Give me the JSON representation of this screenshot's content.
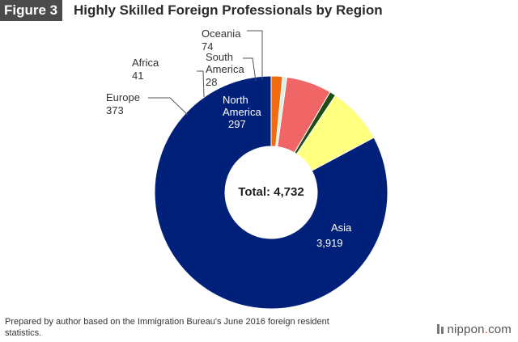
{
  "header": {
    "figure_label": "Figure 3",
    "title": "Highly Skilled Foreign Professionals by Region"
  },
  "chart_data": {
    "type": "pie",
    "title": "Highly Skilled Foreign Professionals by Region",
    "center_label": "Total: 4,732",
    "total": 4732,
    "slices": [
      {
        "name": "Asia",
        "value": 3919,
        "value_label": "3,919",
        "color": "#00207a"
      },
      {
        "name": "Europe",
        "value": 373,
        "value_label": "373",
        "color": "#ffff80"
      },
      {
        "name": "Africa",
        "value": 41,
        "value_label": "41",
        "color": "#1f4d16"
      },
      {
        "name": "North America",
        "value": 297,
        "value_label": "297",
        "color": "#f06565"
      },
      {
        "name": "South America",
        "value": 28,
        "value_label": "28",
        "color": "#d9f0e6"
      },
      {
        "name": "Oceania",
        "value": 74,
        "value_label": "74",
        "color": "#f26b0f"
      }
    ]
  },
  "footer": {
    "note": "Prepared by author based on the Immigration Bureau's June 2016 foreign resident statistics.",
    "brand_name": "nippon",
    "brand_dot": ".",
    "brand_tld": "com"
  }
}
